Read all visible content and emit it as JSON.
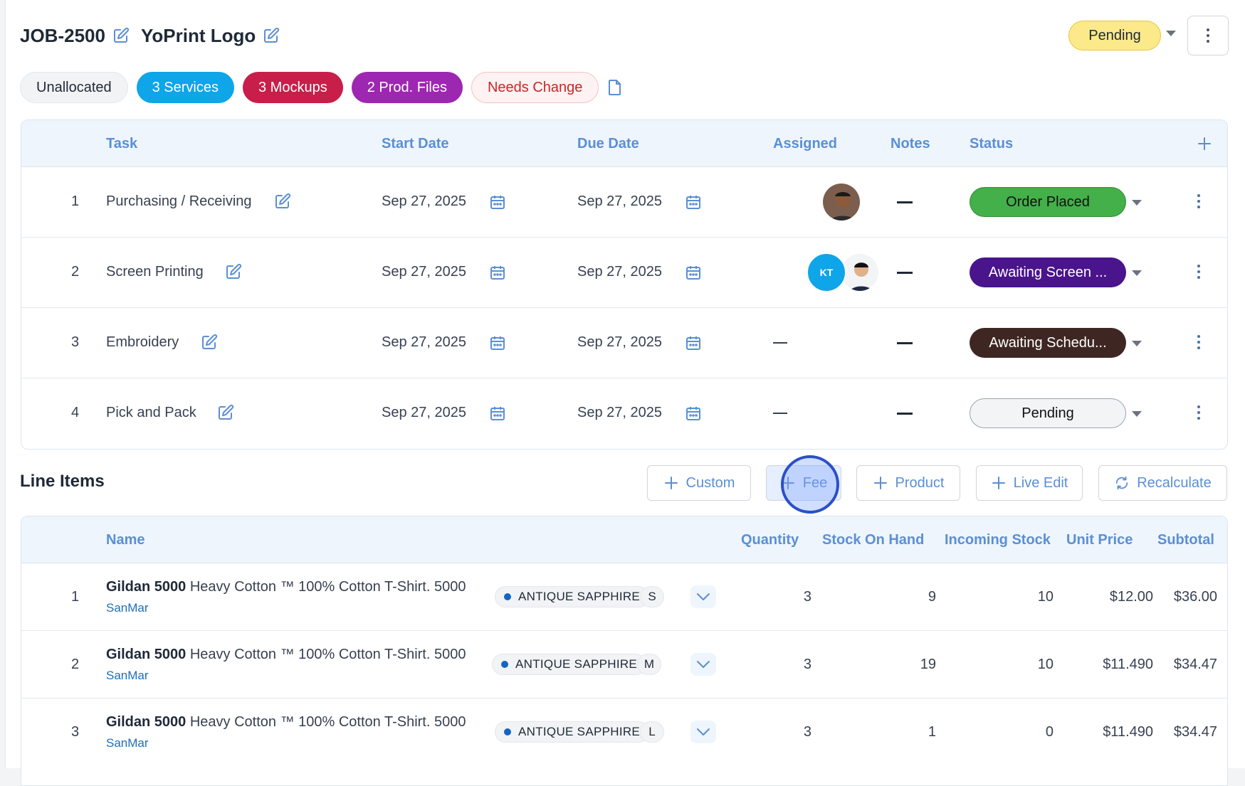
{
  "job": {
    "id": "JOB-2500",
    "title": "YoPrint Logo",
    "status": "Pending"
  },
  "chips": {
    "unallocated": "Unallocated",
    "services": "3 Services",
    "mockups": "3 Mockups",
    "prod_files": "2 Prod. Files",
    "needs_change": "Needs Change"
  },
  "tasks": {
    "headers": {
      "task": "Task",
      "start_date": "Start Date",
      "due_date": "Due Date",
      "assigned": "Assigned",
      "notes": "Notes",
      "status": "Status"
    },
    "rows": [
      {
        "num": "1",
        "name": "Purchasing / Receiving",
        "start": "Sep 27, 2025",
        "due": "Sep 27, 2025",
        "status": "Order Placed"
      },
      {
        "num": "2",
        "name": "Screen Printing",
        "start": "Sep 27, 2025",
        "due": "Sep 27, 2025",
        "assignee_initials": "KT",
        "status": "Awaiting Screen ..."
      },
      {
        "num": "3",
        "name": "Embroidery",
        "start": "Sep 27, 2025",
        "due": "Sep 27, 2025",
        "status": "Awaiting Schedu..."
      },
      {
        "num": "4",
        "name": "Pick and Pack",
        "start": "Sep 27, 2025",
        "due": "Sep 27, 2025",
        "status": "Pending"
      }
    ]
  },
  "line_items": {
    "title": "Line Items",
    "buttons": {
      "custom": "Custom",
      "fee": "Fee",
      "product": "Product",
      "live_edit": "Live Edit",
      "recalculate": "Recalculate"
    },
    "headers": {
      "name": "Name",
      "quantity": "Quantity",
      "stock_on_hand": "Stock On Hand",
      "incoming_stock": "Incoming Stock",
      "unit_price": "Unit Price",
      "subtotal": "Subtotal"
    },
    "rows": [
      {
        "num": "1",
        "brand": "Gildan 5000",
        "desc": "Heavy Cotton ™ 100% Cotton T-Shirt. 5000",
        "vendor": "SanMar",
        "color": "ANTIQUE SAPPHIRE",
        "size": "S",
        "quantity": "3",
        "stock_on_hand": "9",
        "incoming": "10",
        "unit_price": "$12.00",
        "subtotal": "$36.00"
      },
      {
        "num": "2",
        "brand": "Gildan 5000",
        "desc": "Heavy Cotton ™ 100% Cotton T-Shirt. 5000",
        "vendor": "SanMar",
        "color": "ANTIQUE SAPPHIRE",
        "size": "M",
        "quantity": "3",
        "stock_on_hand": "19",
        "incoming": "10",
        "unit_price": "$11.490",
        "subtotal": "$34.47"
      },
      {
        "num": "3",
        "brand": "Gildan 5000",
        "desc": "Heavy Cotton ™ 100% Cotton T-Shirt. 5000",
        "vendor": "SanMar",
        "color": "ANTIQUE SAPPHIRE",
        "size": "L",
        "quantity": "3",
        "stock_on_hand": "1",
        "incoming": "0",
        "unit_price": "$11.490",
        "subtotal": "$34.47"
      }
    ]
  },
  "colors": {
    "accent": "#5b8fd4",
    "status_pending": "#fce98a",
    "order_placed": "#43b049",
    "awaiting_screen": "#4a148c",
    "awaiting_schedule": "#3e2723",
    "services": "#0ea5e9",
    "mockups": "#c81e4a",
    "prod_files": "#9d27b0"
  }
}
